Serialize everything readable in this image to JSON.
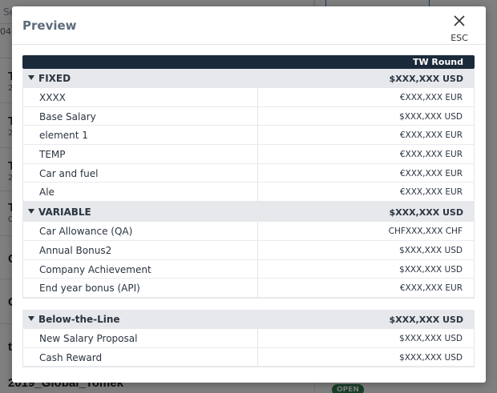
{
  "background": {
    "search_placeholder": "Se",
    "date_fragment": "04",
    "rows": [
      {
        "title": "T",
        "sub": "2"
      },
      {
        "title": "T",
        "sub": "2"
      },
      {
        "title": "T",
        "sub": "2"
      },
      {
        "title": "T",
        "sub": "C"
      },
      {
        "title": "C",
        "sub": ""
      },
      {
        "title": "C",
        "sub": ""
      },
      {
        "title": "t",
        "sub": ""
      }
    ],
    "bottom_title": "2019_Global_Tomek",
    "open_badge": "OPEN"
  },
  "modal": {
    "title": "Preview",
    "close_hint": "ESC",
    "column_header": "TW Round",
    "sections": [
      {
        "name": "FIXED",
        "total": "$XXX,XXX USD",
        "rows": [
          {
            "label": "XXXX",
            "value": "€XXX,XXX EUR"
          },
          {
            "label": "Base Salary",
            "value": "$XXX,XXX USD"
          },
          {
            "label": "element 1",
            "value": "€XXX,XXX EUR"
          },
          {
            "label": "TEMP",
            "value": "€XXX,XXX EUR"
          },
          {
            "label": "Car and fuel",
            "value": "€XXX,XXX EUR"
          },
          {
            "label": "Ale",
            "value": "€XXX,XXX EUR"
          }
        ]
      },
      {
        "name": "VARIABLE",
        "total": "$XXX,XXX USD",
        "rows": [
          {
            "label": "Car Allowance (QA)",
            "value": "CHFXXX,XXX CHF"
          },
          {
            "label": "Annual Bonus2",
            "value": "$XXX,XXX USD"
          },
          {
            "label": "Company Achievement",
            "value": "$XXX,XXX USD"
          },
          {
            "label": "End year bonus (API)",
            "value": "€XXX,XXX EUR"
          }
        ]
      },
      {
        "name": "Below-the-Line",
        "total": "$XXX,XXX USD",
        "rows": [
          {
            "label": "New Salary Proposal",
            "value": "$XXX,XXX USD"
          },
          {
            "label": "Cash Reward",
            "value": "$XXX,XXX USD"
          }
        ]
      }
    ]
  },
  "icons": {
    "close": "close-icon",
    "collapse": "caret-down-icon"
  },
  "colors": {
    "header_dark": "#1b2a3a",
    "section_bg": "#e6e8ec",
    "title_text": "#5d6b7b",
    "open_badge": "#2e7d4f"
  }
}
